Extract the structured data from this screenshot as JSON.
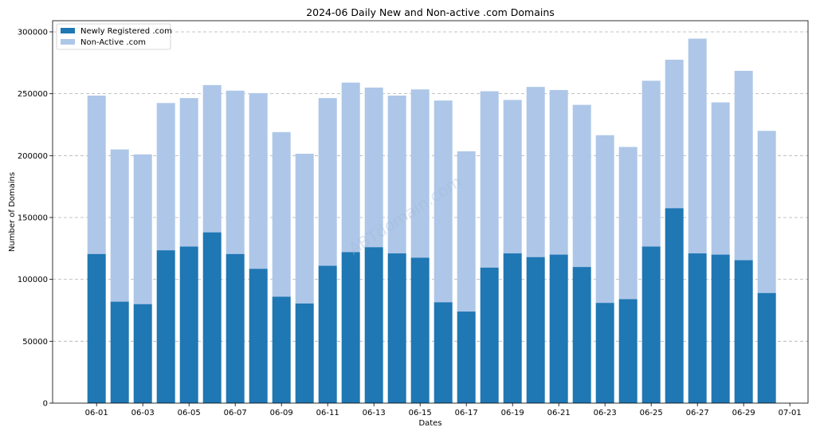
{
  "chart_data": {
    "type": "bar",
    "stacked": true,
    "title": "2024-06 Daily New and Non-active .com Domains",
    "xlabel": "Dates",
    "ylabel": "Number of Domains",
    "watermark": "ABTdomain.com",
    "x": [
      "06-01",
      "06-02",
      "06-03",
      "06-04",
      "06-05",
      "06-06",
      "06-07",
      "06-08",
      "06-09",
      "06-10",
      "06-11",
      "06-12",
      "06-13",
      "06-14",
      "06-15",
      "06-16",
      "06-17",
      "06-18",
      "06-19",
      "06-20",
      "06-21",
      "06-22",
      "06-23",
      "06-24",
      "06-25",
      "06-26",
      "06-27",
      "06-28",
      "06-29",
      "06-30"
    ],
    "x_tick_labels": [
      "06-01",
      "06-03",
      "06-05",
      "06-07",
      "06-09",
      "06-11",
      "06-13",
      "06-15",
      "06-17",
      "06-19",
      "06-21",
      "06-23",
      "06-25",
      "06-27",
      "06-29",
      "07-01"
    ],
    "y_ticks": [
      0,
      50000,
      100000,
      150000,
      200000,
      250000,
      300000
    ],
    "y_tick_labels": [
      "0",
      "50000",
      "100000",
      "150000",
      "200000",
      "250000",
      "300000"
    ],
    "ylim": [
      0,
      309000
    ],
    "grid": "horizontal dashed",
    "legend_position": "top-left",
    "series": [
      {
        "name": "Newly Registered .com",
        "color": "#1f77b4",
        "values": [
          120500,
          82000,
          80000,
          123500,
          126500,
          138000,
          120500,
          108500,
          86000,
          80500,
          111000,
          122000,
          126000,
          121000,
          117500,
          81500,
          74000,
          109500,
          121000,
          118000,
          120000,
          110000,
          81000,
          84000,
          126500,
          157500,
          121000,
          120000,
          115500,
          89000
        ]
      },
      {
        "name": "Non-Active .com",
        "color": "#aec7e8",
        "values": [
          128000,
          123000,
          121000,
          119000,
          120000,
          119000,
          132000,
          142000,
          133000,
          121000,
          135500,
          137000,
          129000,
          127500,
          136000,
          163000,
          129500,
          142500,
          124000,
          137500,
          133000,
          131000,
          135500,
          123000,
          134000,
          120000,
          173500,
          123000,
          153000,
          131000
        ]
      }
    ]
  }
}
